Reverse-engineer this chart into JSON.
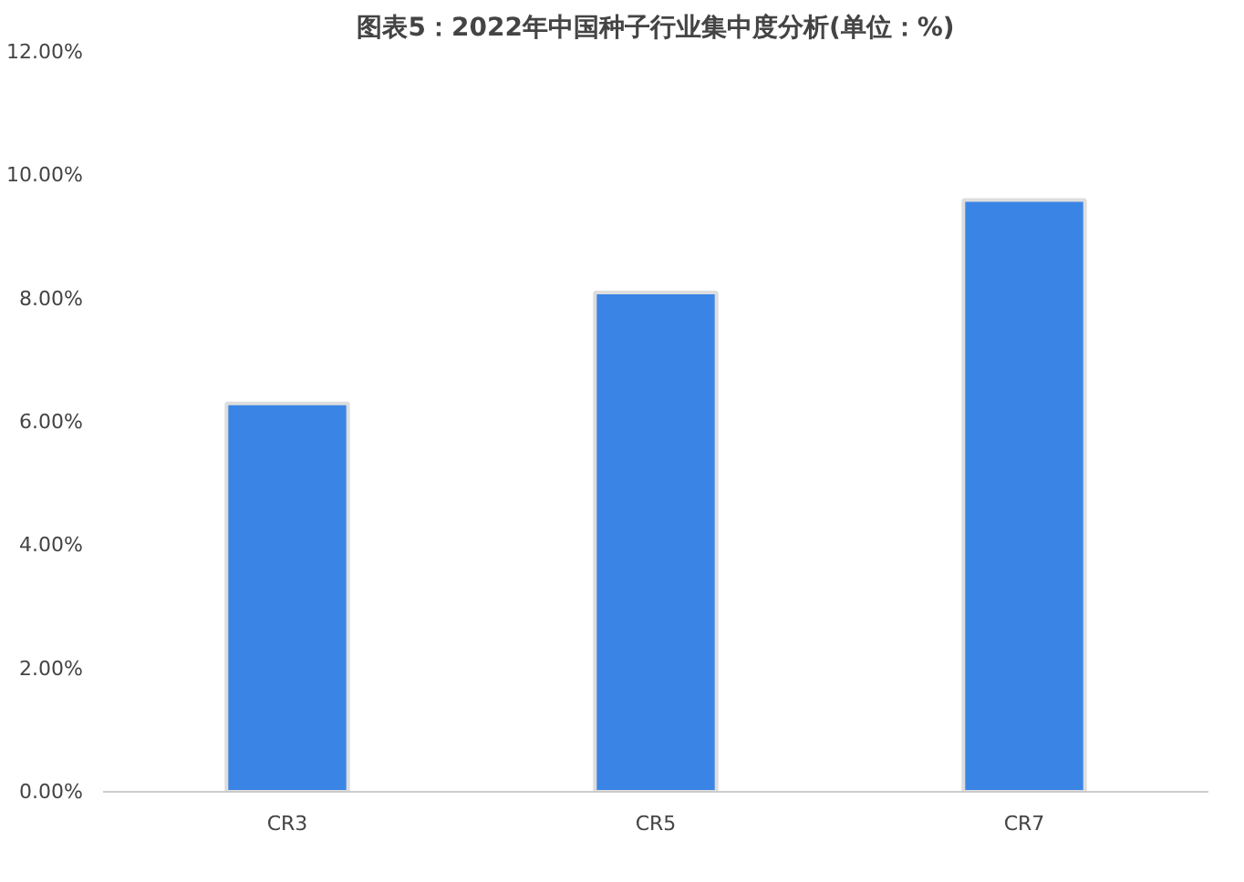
{
  "chart_data": {
    "type": "bar",
    "title": "图表5：2022年中国种子行业集中度分析(单位：%)",
    "categories": [
      "CR3",
      "CR5",
      "CR7"
    ],
    "values": [
      6.3,
      8.1,
      9.6
    ],
    "color": "#3a84e6",
    "ylim": [
      0,
      12
    ],
    "yticks": [
      {
        "value": 0,
        "label": "0.00%"
      },
      {
        "value": 2,
        "label": "2.00%"
      },
      {
        "value": 4,
        "label": "4.00%"
      },
      {
        "value": 6,
        "label": "6.00%"
      },
      {
        "value": 8,
        "label": "8.00%"
      },
      {
        "value": 10,
        "label": "10.00%"
      },
      {
        "value": 12,
        "label": "12.00%"
      }
    ],
    "grid": false
  }
}
